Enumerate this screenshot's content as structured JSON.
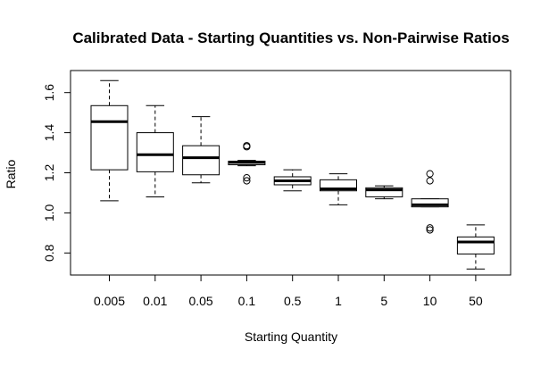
{
  "chart_data": {
    "type": "box",
    "title": "Calibrated Data - Starting Quantities vs. Non-Pairwise Ratios",
    "xlabel": "Starting Quantity",
    "ylabel": "Ratio",
    "ylim": [
      0.69,
      1.71
    ],
    "yticks": [
      "0.8",
      "1.0",
      "1.2",
      "1.4",
      "1.6"
    ],
    "categories": [
      "0.005",
      "0.01",
      "0.05",
      "0.1",
      "0.5",
      "1",
      "5",
      "10",
      "50"
    ],
    "boxes": [
      {
        "whisker_low": 1.06,
        "q1": 1.215,
        "median": 1.455,
        "q3": 1.535,
        "whisker_high": 1.66,
        "outliers": []
      },
      {
        "whisker_low": 1.08,
        "q1": 1.205,
        "median": 1.29,
        "q3": 1.4,
        "whisker_high": 1.535,
        "outliers": []
      },
      {
        "whisker_low": 1.15,
        "q1": 1.19,
        "median": 1.275,
        "q3": 1.335,
        "whisker_high": 1.48,
        "outliers": []
      },
      {
        "whisker_low": 1.235,
        "q1": 1.24,
        "median": 1.252,
        "q3": 1.258,
        "whisker_high": 1.262,
        "outliers": [
          1.335,
          1.33,
          1.175,
          1.16
        ]
      },
      {
        "whisker_low": 1.11,
        "q1": 1.14,
        "median": 1.16,
        "q3": 1.18,
        "whisker_high": 1.215,
        "outliers": []
      },
      {
        "whisker_low": 1.04,
        "q1": 1.11,
        "median": 1.12,
        "q3": 1.165,
        "whisker_high": 1.195,
        "outliers": []
      },
      {
        "whisker_low": 1.07,
        "q1": 1.08,
        "median": 1.115,
        "q3": 1.125,
        "whisker_high": 1.135,
        "outliers": []
      },
      {
        "whisker_low": 1.03,
        "q1": 1.03,
        "median": 1.04,
        "q3": 1.07,
        "whisker_high": 1.07,
        "outliers": [
          1.195,
          1.16,
          0.925,
          0.915
        ]
      },
      {
        "whisker_low": 0.72,
        "q1": 0.795,
        "median": 0.855,
        "q3": 0.88,
        "whisker_high": 0.94,
        "outliers": []
      }
    ],
    "grid": false,
    "legend": "none"
  }
}
